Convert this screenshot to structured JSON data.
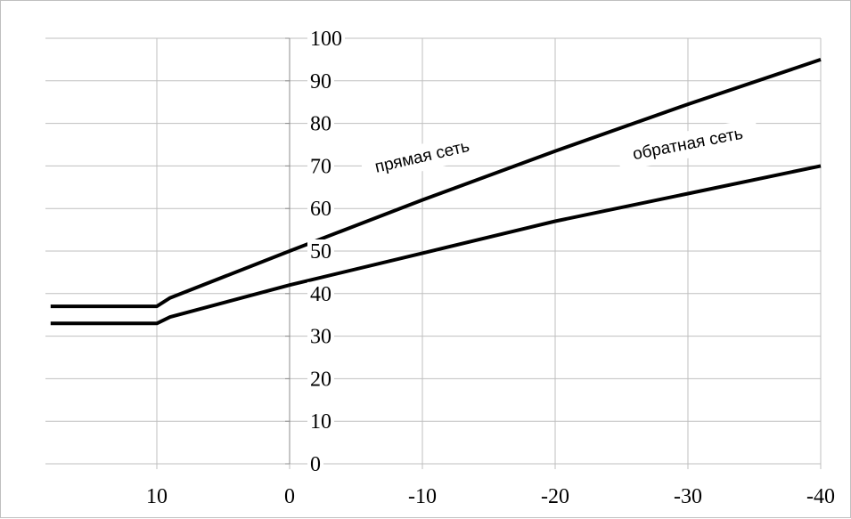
{
  "chart_data": {
    "type": "line",
    "title": "",
    "xlabel": "",
    "ylabel": "",
    "xlim": [
      20,
      -40
    ],
    "ylim": [
      0,
      100
    ],
    "x_ticks": [
      10,
      0,
      -10,
      -20,
      -30,
      -40
    ],
    "x_tick_labels": [
      "10",
      "0",
      "-10",
      "-20",
      "-30",
      "-40"
    ],
    "y_ticks": [
      0,
      10,
      20,
      30,
      40,
      50,
      60,
      70,
      80,
      90,
      100
    ],
    "y_tick_labels": [
      "0",
      "10",
      "20",
      "30",
      "40",
      "50",
      "60",
      "70",
      "80",
      "90",
      "100"
    ],
    "grid": true,
    "series": [
      {
        "name": "прямая сеть",
        "color": "#000000",
        "points": [
          [
            18,
            37
          ],
          [
            12,
            37
          ],
          [
            10,
            37
          ],
          [
            9,
            39
          ],
          [
            0,
            50
          ],
          [
            -10,
            62
          ],
          [
            -20,
            73.5
          ],
          [
            -30,
            84.5
          ],
          [
            -40,
            95
          ]
        ]
      },
      {
        "name": "обратная сеть",
        "color": "#000000",
        "points": [
          [
            18,
            33
          ],
          [
            12,
            33
          ],
          [
            10,
            33
          ],
          [
            9,
            34.5
          ],
          [
            0,
            42
          ],
          [
            -10,
            49.5
          ],
          [
            -20,
            57
          ],
          [
            -30,
            63.5
          ],
          [
            -40,
            70
          ]
        ]
      }
    ],
    "annotations": [
      {
        "text": "прямая сеть",
        "x": -10,
        "y": 72,
        "rotate": -13
      },
      {
        "text": "обратная сеть",
        "x": -30,
        "y": 75,
        "rotate": -11
      }
    ]
  }
}
